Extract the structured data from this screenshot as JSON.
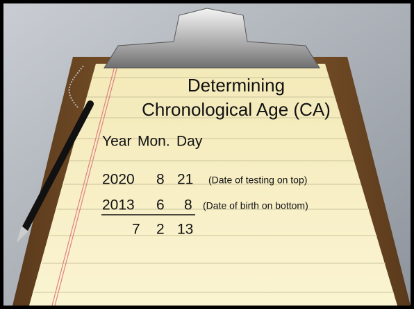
{
  "slide": {
    "title": [
      "Determining",
      "Chronological Age (CA)"
    ],
    "header": [
      "Year",
      "Mon.",
      "Day"
    ],
    "rows": [
      {
        "cells": [
          2020,
          8,
          21
        ],
        "note": "(Date of testing on top)"
      },
      {
        "cells": [
          2013,
          6,
          8
        ],
        "note": "(Date of birth on bottom)"
      },
      {
        "cells": [
          7,
          2,
          13
        ]
      }
    ]
  }
}
